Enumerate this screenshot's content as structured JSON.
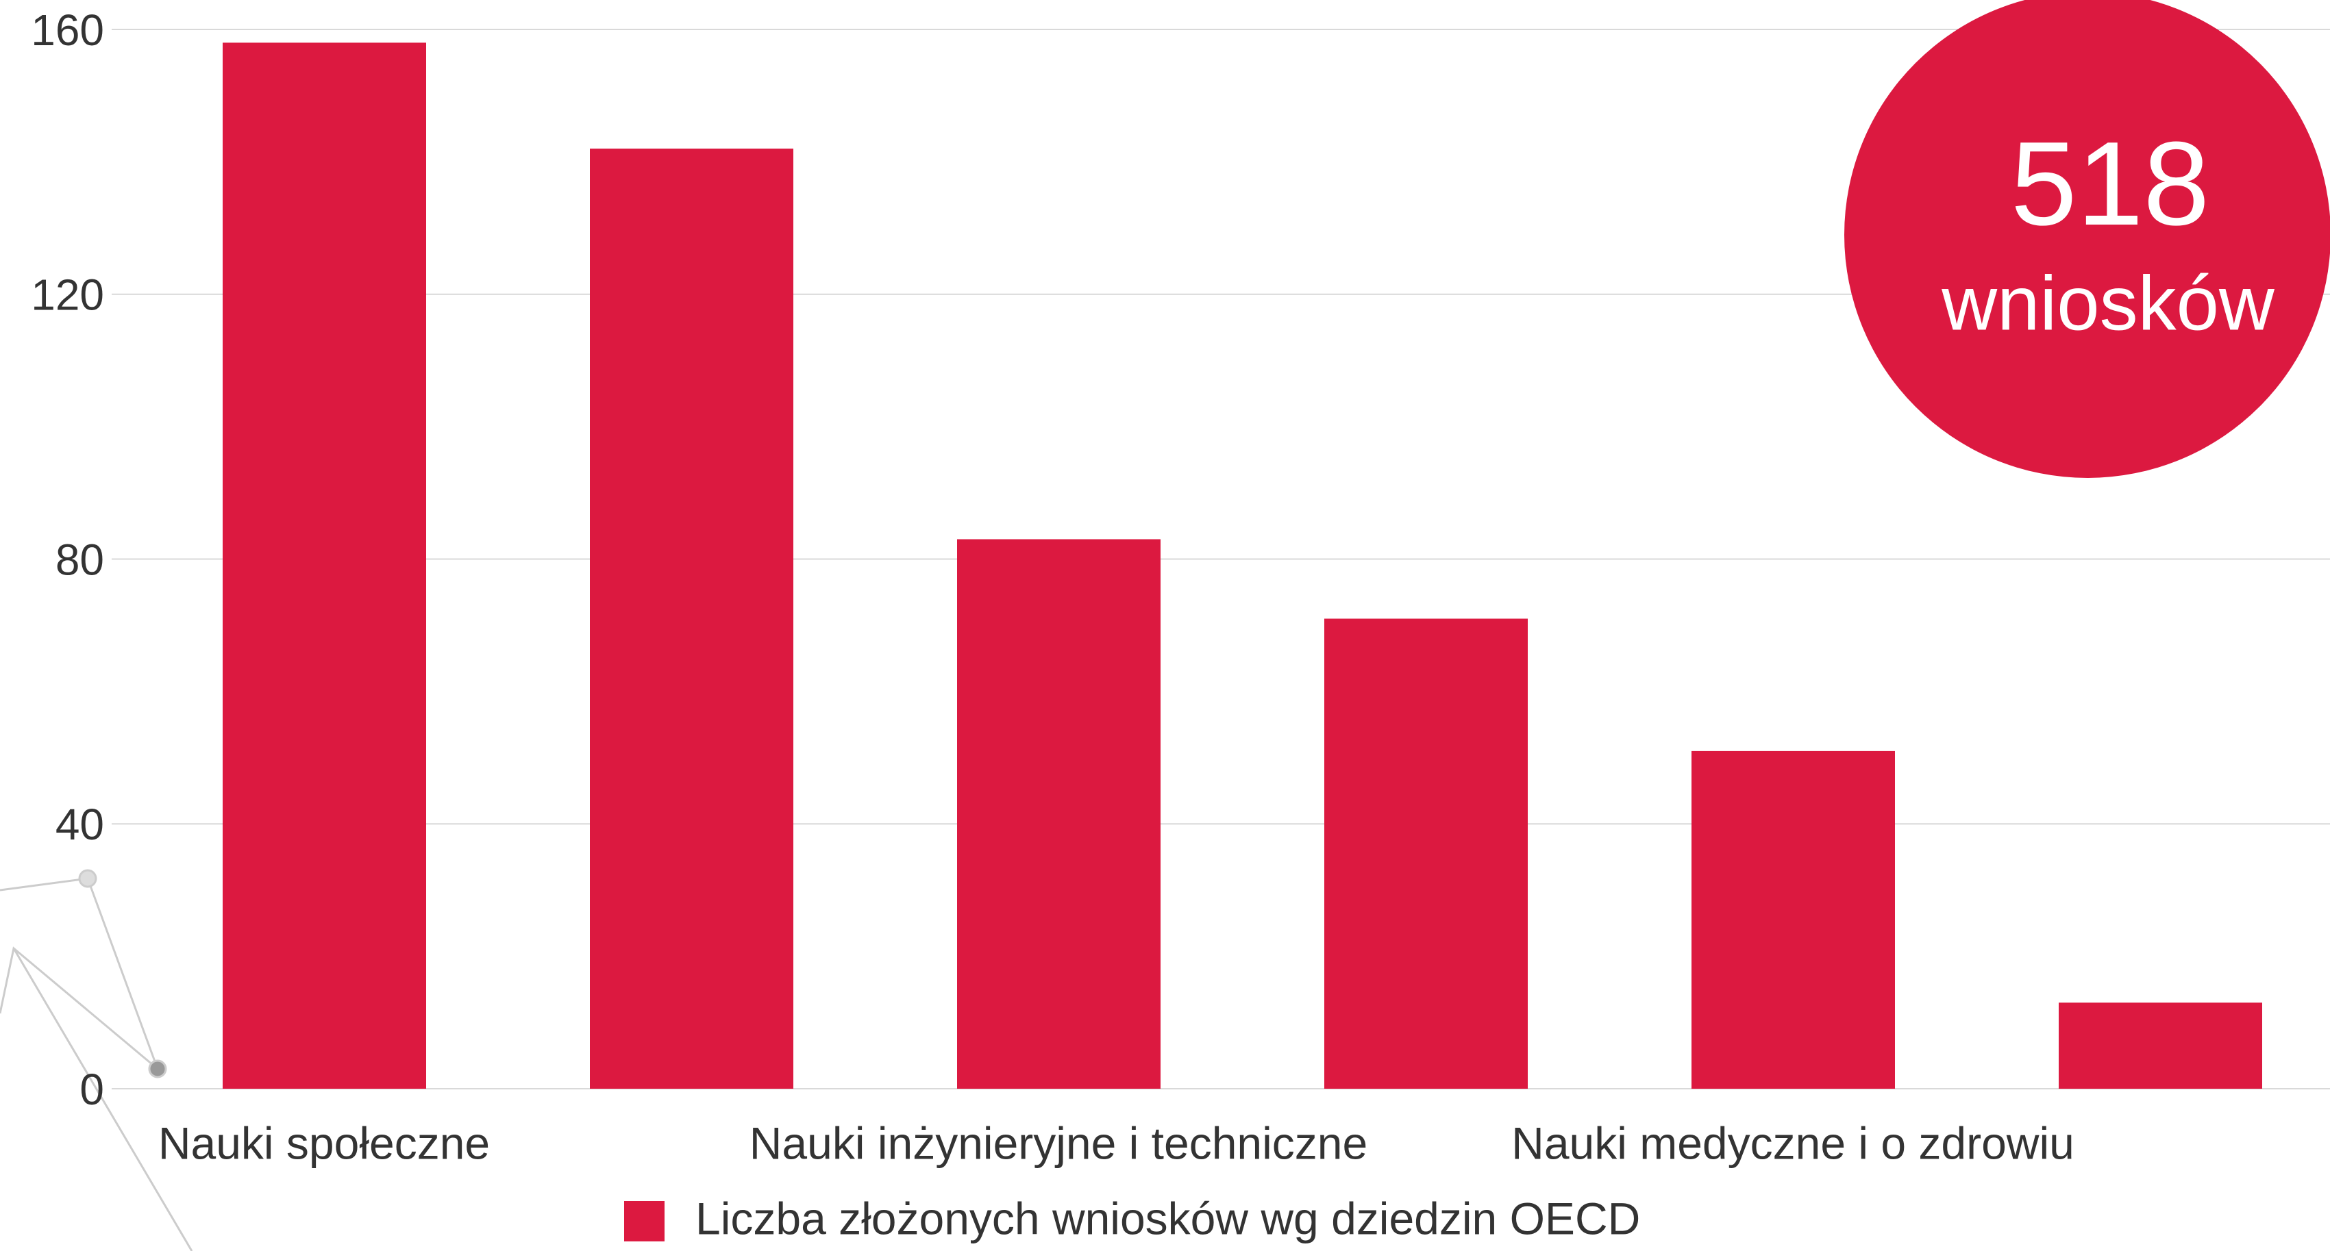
{
  "chart_data": {
    "type": "bar",
    "categories": [
      "Nauki społeczne",
      null,
      "Nauki inżynieryjne i techniczne",
      null,
      "Nauki medyczne i o zdrowiu",
      null
    ],
    "series": [
      {
        "name": "Liczba złożonych wniosków wg dziedzin OECD",
        "color": "#dc1940",
        "values": [
          158,
          142,
          83,
          71,
          51,
          13
        ]
      }
    ],
    "ylim": [
      0,
      160
    ],
    "yticks": [
      0,
      40,
      80,
      120,
      160
    ],
    "grid": true,
    "annotations": [
      "518",
      "wniosków"
    ]
  }
}
